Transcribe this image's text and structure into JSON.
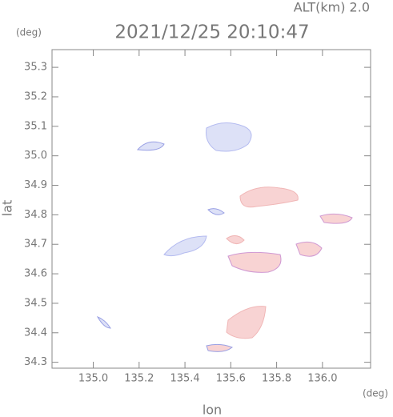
{
  "chart_data": {
    "type": "radar-map",
    "title": "2021/12/25 20:10:47",
    "subtitle": "ALT(km) 2.0",
    "x_label": "lon",
    "y_label": "lat",
    "x_unit": "(deg)",
    "y_unit": "(deg)",
    "xlim": [
      134.82,
      136.21
    ],
    "ylim": [
      34.28,
      35.36
    ],
    "xticks": [
      {
        "value": 135.0,
        "label": "135.0"
      },
      135.2,
      135.4,
      135.6,
      135.8,
      {
        "value": 136.0,
        "label": "136.0"
      }
    ],
    "yticks": [
      34.3,
      34.4,
      34.5,
      34.6,
      34.7,
      34.8,
      34.9,
      {
        "value": 35.0,
        "label": "35.0"
      },
      35.1,
      35.2,
      35.3
    ]
  }
}
